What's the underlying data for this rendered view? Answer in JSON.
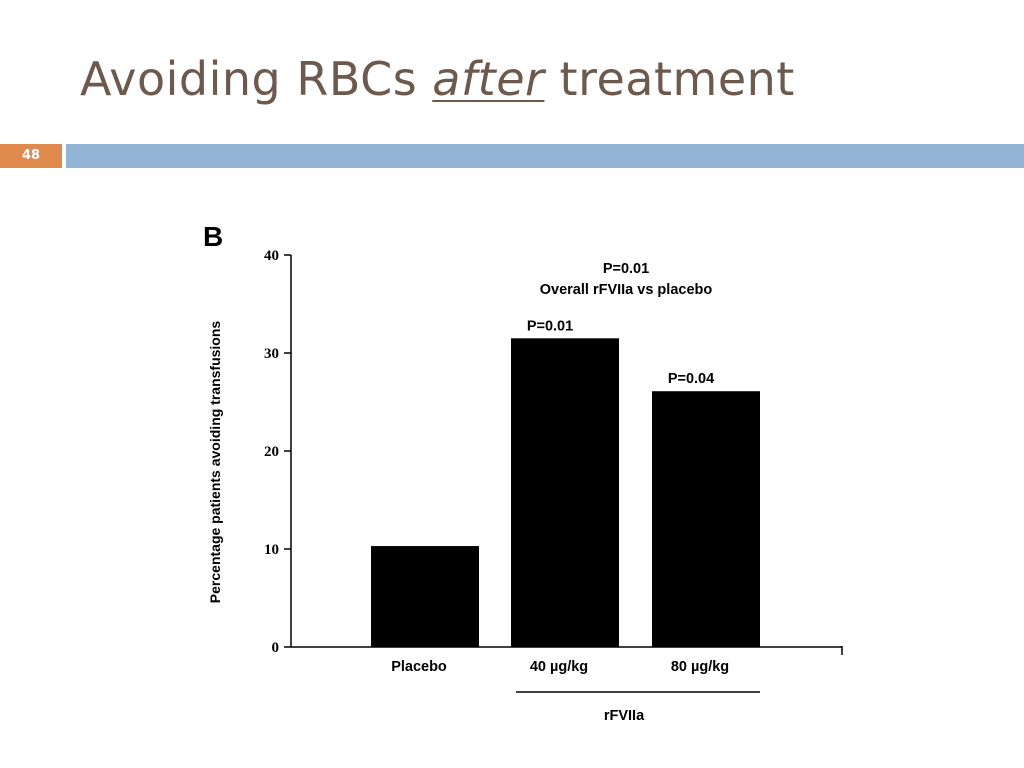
{
  "slide": {
    "title_before": "Avoiding RBCs ",
    "title_emph": "after",
    "title_after": " treatment",
    "page_number": "48",
    "accent_color": "#e08a4e",
    "rule_color": "#93b5d5",
    "title_color": "#6e5a4d"
  },
  "chart_data": {
    "type": "bar",
    "panel_label": "B",
    "categories": [
      "Placebo",
      "40 µg/kg",
      "80 µg/kg"
    ],
    "values": [
      10.3,
      31.5,
      26.1
    ],
    "ylabel": "Percentage patients avoiding transfusions",
    "xlabel": "",
    "ylim": [
      0,
      40
    ],
    "yticks": [
      0,
      10,
      20,
      30,
      40
    ],
    "group_label": "rFVIIa",
    "bar_labels": [
      "",
      "P=0.01",
      "P=0.04"
    ],
    "overall_annotation": [
      "P=0.01",
      "Overall rFVIIa vs placebo"
    ],
    "bar_color": "#000000",
    "grid": false
  }
}
